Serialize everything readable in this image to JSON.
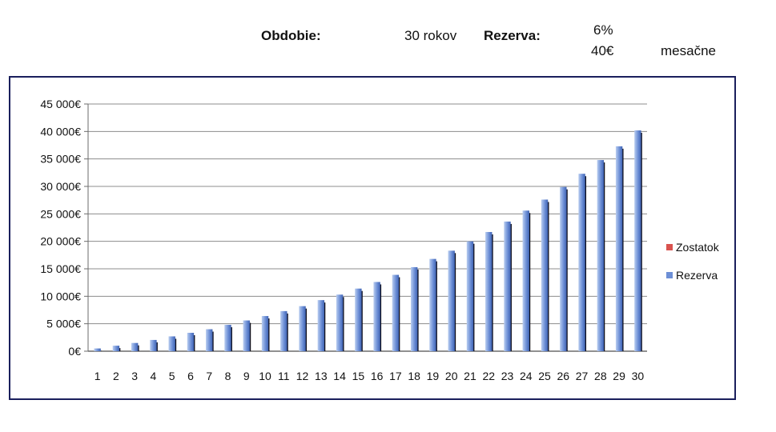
{
  "header": {
    "obdobie_label": "Obdobie:",
    "obdobie_value": "30 rokov",
    "rezerva_label": "Rezerva:",
    "rate": "6%",
    "amount": "40€",
    "frequency": "mesačne"
  },
  "colors": {
    "frame": "#1a1f5c",
    "grid": "#8c8c8c",
    "rezerva": "#6d8fd6",
    "rezerva_light": "#b9cdf0",
    "zostatok": "#d9534f",
    "shadow": "#0d0d1a"
  },
  "chart_data": {
    "type": "bar",
    "categories": [
      "1",
      "2",
      "3",
      "4",
      "5",
      "6",
      "7",
      "8",
      "9",
      "10",
      "11",
      "12",
      "13",
      "14",
      "15",
      "16",
      "17",
      "18",
      "19",
      "20",
      "21",
      "22",
      "23",
      "24",
      "25",
      "26",
      "27",
      "28",
      "29",
      "30"
    ],
    "y_tick_labels": [
      "0€",
      "5 000€",
      "10 000€",
      "15 000€",
      "20 000€",
      "25 000€",
      "30 000€",
      "35 000€",
      "40 000€",
      "45 000€"
    ],
    "ylim": [
      0,
      45000
    ],
    "grid": true,
    "legend_position": "right",
    "series": [
      {
        "name": "Zostatok",
        "color": "#d9534f",
        "values": [
          0,
          0,
          0,
          0,
          0,
          0,
          0,
          0,
          0,
          0,
          0,
          0,
          0,
          0,
          0,
          0,
          0,
          0,
          0,
          0,
          0,
          0,
          0,
          0,
          0,
          0,
          0,
          0,
          0,
          0
        ]
      },
      {
        "name": "Rezerva",
        "color": "#6d8fd6",
        "values": [
          500,
          1000,
          1500,
          2050,
          2700,
          3350,
          4000,
          4800,
          5600,
          6400,
          7300,
          8200,
          9300,
          10300,
          11400,
          12600,
          13900,
          15300,
          16800,
          18300,
          20000,
          21700,
          23600,
          25600,
          27600,
          29900,
          32300,
          34800,
          37300,
          40200
        ]
      }
    ],
    "legend": [
      "Zostatok",
      "Rezerva"
    ]
  }
}
